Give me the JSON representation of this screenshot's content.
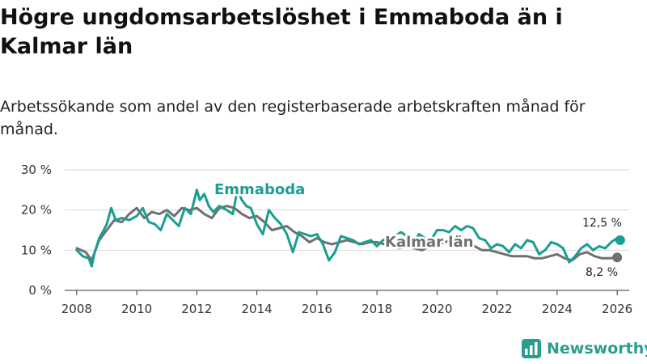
{
  "title": "Högre ungdomsarbetslöshet i Emmaboda än i Kalmar län",
  "subtitle": "Arbetssökande som andel av den registerbaserade arbetskraften månad för månad.",
  "brand": "Newsworthy",
  "colors": {
    "emmaboda": "#1a9e91",
    "kalmar": "#707070",
    "grid": "#d9d9d9"
  },
  "chart_data": {
    "type": "line",
    "xlim": [
      2007.6,
      2026.4
    ],
    "ylim": [
      0,
      30
    ],
    "x_ticks": [
      2008,
      2010,
      2012,
      2014,
      2016,
      2018,
      2020,
      2022,
      2024,
      2026
    ],
    "x_tick_labels": [
      "2008",
      "2010",
      "2012",
      "2014",
      "2016",
      "2018",
      "2020",
      "2022",
      "2024",
      "2026"
    ],
    "y_ticks": [
      0,
      10,
      20,
      30
    ],
    "y_tick_labels": [
      "0 %",
      "10 %",
      "20 %",
      "30 %"
    ],
    "series": [
      {
        "name": "Kalmar län",
        "color": "#707070",
        "x": [
          2008.0,
          2008.3,
          2008.5,
          2008.75,
          2009.0,
          2009.25,
          2009.5,
          2009.75,
          2010.0,
          2010.25,
          2010.5,
          2010.75,
          2011.0,
          2011.25,
          2011.5,
          2011.75,
          2012.0,
          2012.25,
          2012.5,
          2012.75,
          2013.0,
          2013.25,
          2013.5,
          2013.75,
          2014.0,
          2014.25,
          2014.5,
          2014.75,
          2015.0,
          2015.25,
          2015.5,
          2015.75,
          2016.0,
          2016.25,
          2016.5,
          2016.75,
          2017.0,
          2017.25,
          2017.5,
          2017.75,
          2018.0,
          2018.25,
          2018.5,
          2018.75,
          2019.0,
          2019.25,
          2019.5,
          2019.75,
          2020.0,
          2020.25,
          2020.5,
          2020.75,
          2021.0,
          2021.25,
          2021.5,
          2021.75,
          2022.0,
          2022.25,
          2022.5,
          2022.75,
          2023.0,
          2023.25,
          2023.5,
          2023.75,
          2024.0,
          2024.25,
          2024.5,
          2024.75,
          2025.0,
          2025.25,
          2025.5,
          2025.75,
          2026.0
        ],
        "values": [
          10.5,
          9.5,
          7.5,
          12.5,
          15.0,
          17.5,
          17.0,
          19.0,
          20.5,
          18.0,
          19.5,
          19.0,
          20.0,
          18.5,
          20.5,
          20.0,
          20.5,
          19.0,
          18.0,
          20.5,
          21.0,
          20.5,
          19.0,
          18.0,
          18.5,
          17.0,
          15.0,
          15.5,
          16.0,
          14.5,
          13.5,
          12.0,
          13.0,
          12.0,
          11.5,
          12.0,
          12.5,
          12.0,
          11.5,
          12.0,
          12.0,
          11.5,
          11.0,
          10.5,
          11.0,
          10.5,
          10.0,
          11.0,
          11.5,
          12.0,
          12.5,
          12.0,
          11.5,
          11.0,
          10.0,
          10.0,
          9.5,
          9.0,
          8.5,
          8.5,
          8.5,
          8.0,
          8.0,
          8.5,
          9.0,
          8.0,
          7.5,
          9.0,
          9.5,
          8.5,
          8.0,
          8.0,
          8.2
        ]
      },
      {
        "name": "Emmaboda",
        "color": "#1a9e91",
        "x": [
          2008.0,
          2008.2,
          2008.4,
          2008.5,
          2008.6,
          2008.75,
          2008.9,
          2009.0,
          2009.15,
          2009.3,
          2009.5,
          2009.75,
          2010.0,
          2010.2,
          2010.4,
          2010.6,
          2010.8,
          2011.0,
          2011.2,
          2011.4,
          2011.6,
          2011.8,
          2012.0,
          2012.1,
          2012.25,
          2012.4,
          2012.55,
          2012.75,
          2013.0,
          2013.2,
          2013.35,
          2013.5,
          2013.65,
          2013.8,
          2014.0,
          2014.2,
          2014.4,
          2014.6,
          2014.8,
          2015.0,
          2015.2,
          2015.4,
          2015.6,
          2015.8,
          2016.0,
          2016.2,
          2016.4,
          2016.6,
          2016.8,
          2017.0,
          2017.2,
          2017.4,
          2017.6,
          2017.8,
          2018.0,
          2018.2,
          2018.4,
          2018.6,
          2018.8,
          2019.0,
          2019.2,
          2019.4,
          2019.6,
          2019.8,
          2020.0,
          2020.2,
          2020.4,
          2020.6,
          2020.8,
          2021.0,
          2021.2,
          2021.4,
          2021.6,
          2021.8,
          2022.0,
          2022.2,
          2022.4,
          2022.6,
          2022.8,
          2023.0,
          2023.2,
          2023.4,
          2023.6,
          2023.8,
          2024.0,
          2024.2,
          2024.4,
          2024.6,
          2024.8,
          2025.0,
          2025.2,
          2025.4,
          2025.6,
          2025.8,
          2026.0,
          2026.1
        ],
        "values": [
          10.0,
          8.5,
          8.0,
          6.0,
          9.5,
          13.0,
          15.0,
          16.5,
          20.5,
          17.5,
          18.0,
          17.5,
          18.5,
          20.5,
          17.0,
          16.5,
          15.0,
          19.0,
          17.5,
          16.0,
          20.5,
          19.0,
          25.0,
          22.5,
          24.0,
          21.0,
          19.5,
          21.0,
          20.0,
          19.0,
          25.0,
          22.5,
          21.0,
          20.5,
          16.5,
          14.0,
          20.0,
          18.0,
          16.5,
          14.0,
          9.5,
          14.5,
          14.0,
          13.5,
          14.0,
          11.5,
          7.5,
          9.5,
          13.5,
          13.0,
          12.5,
          11.5,
          12.0,
          12.5,
          11.0,
          12.5,
          13.0,
          13.5,
          14.5,
          13.5,
          11.5,
          14.0,
          13.0,
          12.5,
          15.0,
          15.0,
          14.5,
          16.0,
          15.0,
          16.0,
          15.5,
          13.0,
          12.5,
          10.5,
          11.5,
          11.0,
          9.5,
          11.5,
          10.5,
          12.5,
          12.0,
          9.0,
          10.0,
          12.0,
          11.5,
          10.5,
          7.0,
          8.5,
          10.5,
          11.5,
          10.0,
          11.0,
          10.5,
          12.0,
          13.0,
          12.5
        ]
      }
    ],
    "annotations": [
      {
        "text": "Emmaboda",
        "series": "Emmaboda"
      },
      {
        "text": "Kalmar län",
        "series": "Kalmar län"
      },
      {
        "text": "12,5 %",
        "series": "Emmaboda",
        "x": 2026.1,
        "y": 12.5
      },
      {
        "text": "8,2 %",
        "series": "Kalmar län",
        "x": 2026.0,
        "y": 8.2
      }
    ]
  }
}
